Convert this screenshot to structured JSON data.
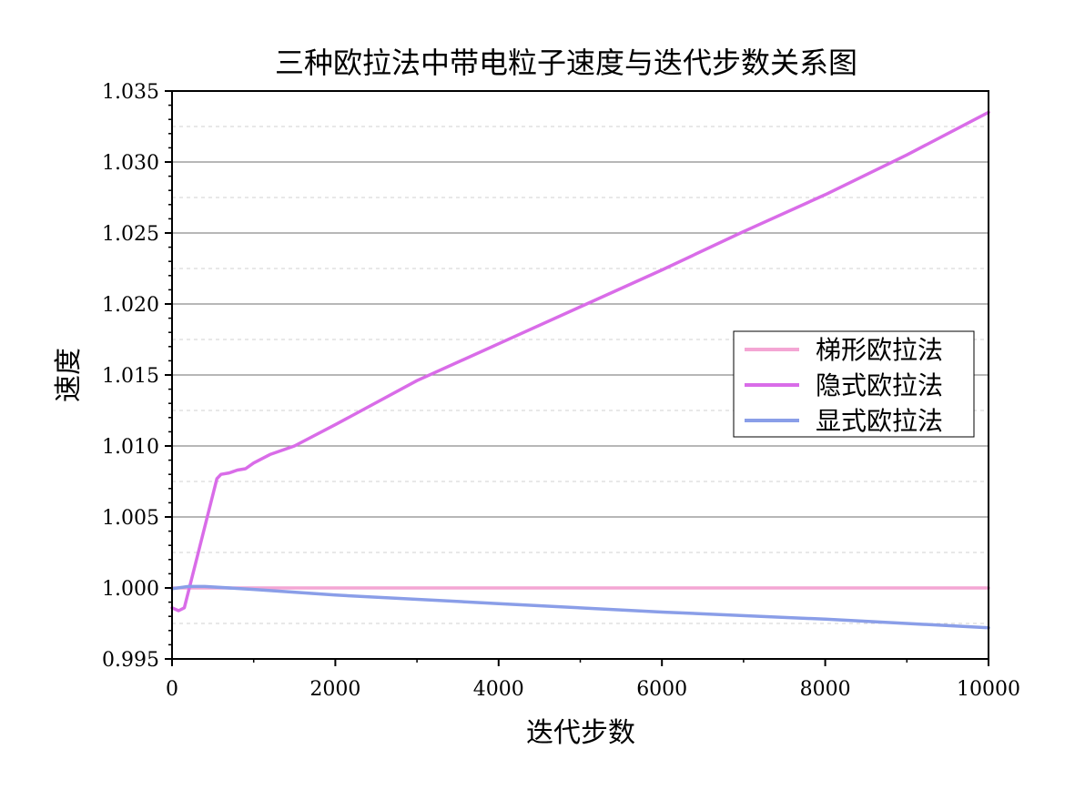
{
  "chart_data": {
    "type": "line",
    "title": "三种欧拉法中带电粒子速度与迭代步数关系图",
    "xlabel": "迭代步数",
    "ylabel": "速度",
    "xlim": [
      0,
      10000
    ],
    "ylim": [
      0.995,
      1.035
    ],
    "x_ticks": [
      "0",
      "2000",
      "4000",
      "6000",
      "8000",
      "10000"
    ],
    "y_ticks": [
      "0.995",
      "1.000",
      "1.005",
      "1.010",
      "1.015",
      "1.020",
      "1.025",
      "1.030",
      "1.035"
    ],
    "grid": "major solid, minor dashed (y only)",
    "legend_position": "center-right",
    "series": [
      {
        "name": "梯形欧拉法",
        "color": "#f4a6d4",
        "x": [
          0,
          2000,
          4000,
          6000,
          8000,
          10000
        ],
        "y": [
          1.0,
          1.0,
          1.0,
          1.0,
          1.0,
          1.0
        ]
      },
      {
        "name": "隐式欧拉法",
        "color": "#d96ce8",
        "x": [
          0,
          80,
          150,
          300,
          550,
          600,
          700,
          800,
          900,
          1000,
          1200,
          1500,
          2000,
          3000,
          4000,
          5000,
          6000,
          7000,
          8000,
          9000,
          10000
        ],
        "y": [
          0.9986,
          0.9984,
          0.9986,
          1.002,
          1.0077,
          1.008,
          1.0081,
          1.0083,
          1.0084,
          1.0088,
          1.0094,
          1.01,
          1.0115,
          1.0146,
          1.0172,
          1.0198,
          1.0224,
          1.0251,
          1.0277,
          1.0305,
          1.0335
        ]
      },
      {
        "name": "显式欧拉法",
        "color": "#8a9ee8",
        "x": [
          0,
          200,
          400,
          1000,
          2000,
          4000,
          6000,
          8000,
          10000
        ],
        "y": [
          0.99995,
          1.0001,
          1.0001,
          0.9999,
          0.9995,
          0.9989,
          0.9983,
          0.9978,
          0.9972
        ]
      }
    ]
  }
}
